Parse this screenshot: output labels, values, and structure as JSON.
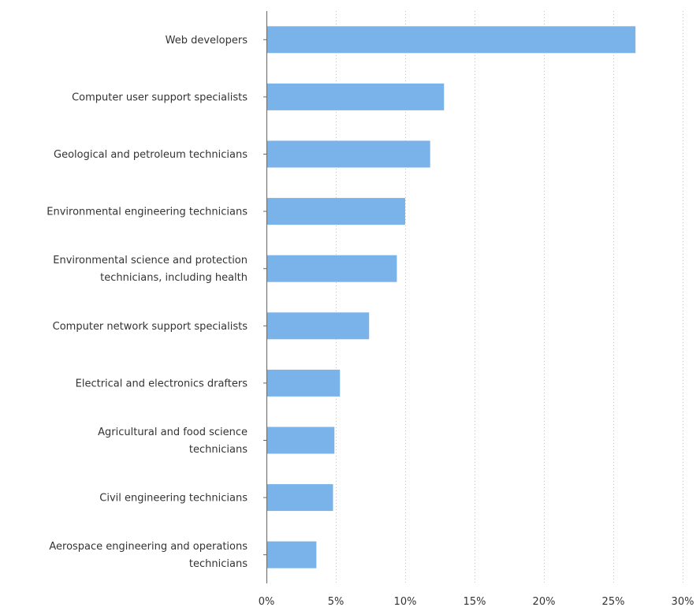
{
  "chart_data": {
    "type": "bar",
    "orientation": "horizontal",
    "title": "",
    "xlabel": "",
    "ylabel": "",
    "xlim": [
      0,
      30
    ],
    "x_ticks": [
      0,
      5,
      10,
      15,
      20,
      25,
      30
    ],
    "x_tick_labels": [
      "0%",
      "5%",
      "10%",
      "15%",
      "20%",
      "25%",
      "30%"
    ],
    "grid": "vertical dotted",
    "legend": "none",
    "bar_color": "#7ab3ea",
    "categories": [
      [
        "Web developers"
      ],
      [
        "Computer user support specialists"
      ],
      [
        "Geological and petroleum technicians"
      ],
      [
        "Environmental engineering technicians"
      ],
      [
        "Environmental science and protection",
        "technicians, including health"
      ],
      [
        "Computer network support specialists"
      ],
      [
        "Electrical and electronics drafters"
      ],
      [
        "Agricultural and food science",
        "technicians"
      ],
      [
        "Civil engineering technicians"
      ],
      [
        "Aerospace engineering and operations",
        "technicians"
      ]
    ],
    "values": [
      26.6,
      12.8,
      11.8,
      10.0,
      9.4,
      7.4,
      5.3,
      4.9,
      4.8,
      3.6
    ]
  }
}
